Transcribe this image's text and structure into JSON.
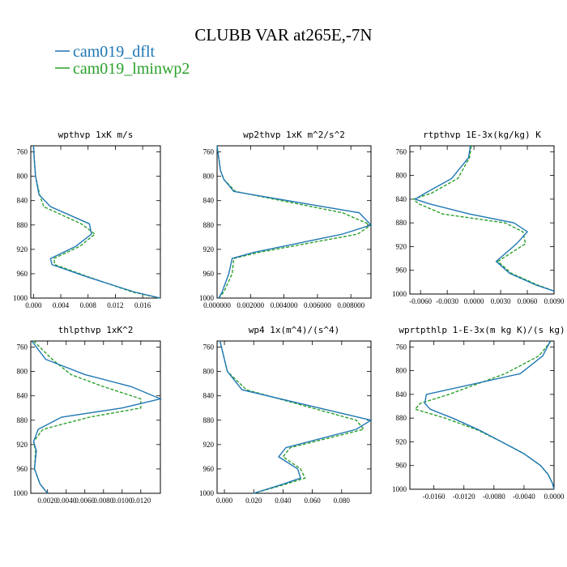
{
  "figure": {
    "title": "CLUBB VAR at265E,-7N",
    "legend": [
      {
        "label": "cam019_dflt",
        "color": "#1f77b4",
        "dash": false
      },
      {
        "label": "cam019_lminwp2",
        "color": "#2ca02c",
        "dash": true
      }
    ]
  },
  "chart_data": [
    {
      "type": "line",
      "title": "wpthvp  1xK m/s",
      "xlim": [
        -0.0004,
        0.0186
      ],
      "ylim": [
        1000,
        750
      ],
      "yticks": [
        760,
        800,
        840,
        880,
        920,
        960,
        1000
      ],
      "xticks": [
        0.0,
        0.004,
        0.008,
        0.012,
        0.016
      ],
      "xticklabels": [
        "0.000",
        "0.004",
        "0.008",
        "0.012",
        "0.016"
      ],
      "y": [
        750,
        770,
        800,
        830,
        850,
        878,
        895,
        915,
        935,
        945,
        965,
        990,
        1000
      ],
      "series": [
        {
          "name": "cam019_dflt",
          "values": [
            0.0,
            0.0001,
            0.0003,
            0.0008,
            0.0025,
            0.0082,
            0.0085,
            0.0062,
            0.0025,
            0.0027,
            0.0078,
            0.0148,
            0.0186
          ]
        },
        {
          "name": "cam019_lminwp2",
          "values": [
            0.0,
            0.0001,
            0.0003,
            0.0009,
            0.0015,
            0.007,
            0.009,
            0.0068,
            0.003,
            0.0031,
            0.008,
            0.0145,
            0.0185
          ]
        }
      ]
    },
    {
      "type": "line",
      "title": "wp2thvp  1xK m^2/s^2",
      "xlim": [
        0.0,
        0.0092
      ],
      "ylim": [
        1000,
        750
      ],
      "yticks": [
        760,
        800,
        840,
        880,
        920,
        960,
        1000
      ],
      "xticks": [
        0.0,
        0.002,
        0.004,
        0.006,
        0.008
      ],
      "xticklabels": [
        "0.000000",
        "0.002000",
        "0.004000",
        "0.006000",
        "0.008000"
      ],
      "y": [
        750,
        770,
        790,
        805,
        825,
        860,
        880,
        895,
        925,
        935,
        960,
        990,
        1000
      ],
      "series": [
        {
          "name": "cam019_dflt",
          "values": [
            0.0,
            0.0001,
            0.0002,
            0.0004,
            0.001,
            0.0085,
            0.0092,
            0.0075,
            0.0022,
            0.0009,
            0.0007,
            0.0003,
            0.0001
          ]
        },
        {
          "name": "cam019_lminwp2",
          "values": [
            0.0,
            0.0001,
            0.0002,
            0.0004,
            0.0011,
            0.0075,
            0.0092,
            0.0084,
            0.0025,
            0.001,
            0.0009,
            0.0004,
            0.0001
          ]
        }
      ]
    },
    {
      "type": "line",
      "title": "rtpthvp  1E-3x(kg/kg) K",
      "xlim": [
        -0.0072,
        0.009
      ],
      "ylim": [
        1000,
        750
      ],
      "yticks": [
        760,
        800,
        840,
        880,
        920,
        960,
        1000
      ],
      "xticks": [
        -0.006,
        -0.003,
        0.0,
        0.003,
        0.006,
        0.009
      ],
      "xticklabels": [
        "-0.0060",
        "-0.0030",
        "0.0000",
        "0.0030",
        "0.0060",
        "0.0090"
      ],
      "y": [
        750,
        770,
        805,
        830,
        840,
        848,
        865,
        880,
        895,
        915,
        945,
        965,
        985,
        995
      ],
      "series": [
        {
          "name": "cam019_dflt",
          "values": [
            -0.0004,
            -0.0006,
            -0.0025,
            -0.0055,
            -0.0066,
            -0.005,
            -0.0005,
            0.0045,
            0.006,
            0.0048,
            0.0025,
            0.004,
            0.007,
            0.009
          ]
        },
        {
          "name": "cam019_lminwp2",
          "values": [
            -0.0003,
            -0.0005,
            -0.0018,
            -0.0048,
            -0.0068,
            -0.0062,
            -0.0035,
            0.0035,
            0.0055,
            0.0058,
            0.0027,
            0.0042,
            0.0072,
            0.009
          ]
        }
      ]
    },
    {
      "type": "line",
      "title": "thlpthvp  1xK^2",
      "xlim": [
        0.0002,
        0.0141
      ],
      "ylim": [
        1000,
        750
      ],
      "yticks": [
        760,
        800,
        840,
        880,
        920,
        960,
        1000
      ],
      "xticks": [
        0.002,
        0.004,
        0.006,
        0.008,
        0.01,
        0.012
      ],
      "xticklabels": [
        "0.0020",
        "0.0040",
        "0.0060",
        "0.0080",
        "0.0100",
        "0.0120"
      ],
      "y": [
        750,
        780,
        805,
        825,
        845,
        860,
        875,
        895,
        915,
        930,
        960,
        985,
        1000
      ],
      "series": [
        {
          "name": "cam019_dflt",
          "values": [
            0.0003,
            0.0018,
            0.006,
            0.011,
            0.0141,
            0.01,
            0.0035,
            0.001,
            0.0005,
            0.0008,
            0.0006,
            0.0012,
            0.002
          ]
        },
        {
          "name": "cam019_lminwp2",
          "values": [
            0.0005,
            0.0025,
            0.0045,
            0.008,
            0.012,
            0.012,
            0.0065,
            0.0015,
            0.0005,
            0.0007,
            0.0006,
            0.0012,
            0.002
          ]
        }
      ]
    },
    {
      "type": "line",
      "title": "wp4  1x(m^4)/(s^4)",
      "xlim": [
        -0.005,
        0.1
      ],
      "ylim": [
        1000,
        750
      ],
      "yticks": [
        760,
        800,
        840,
        880,
        920,
        960,
        1000
      ],
      "xticks": [
        0.0,
        0.02,
        0.04,
        0.06,
        0.08
      ],
      "xticklabels": [
        "0.000",
        "0.020",
        "0.040",
        "0.060",
        "0.080"
      ],
      "y": [
        750,
        770,
        800,
        830,
        880,
        895,
        925,
        940,
        960,
        975,
        985,
        1000
      ],
      "series": [
        {
          "name": "cam019_dflt",
          "values": [
            -0.003,
            -0.001,
            0.002,
            0.012,
            0.1,
            0.09,
            0.042,
            0.037,
            0.05,
            0.052,
            0.04,
            0.02
          ]
        },
        {
          "name": "cam019_lminwp2",
          "values": [
            -0.003,
            -0.001,
            0.002,
            0.015,
            0.09,
            0.095,
            0.045,
            0.04,
            0.052,
            0.055,
            0.042,
            0.02
          ]
        }
      ]
    },
    {
      "type": "line",
      "title": "wprtpthlp  1-E-3x(m kg K)/(s kg)",
      "xlim": [
        -0.0192,
        0.0
      ],
      "ylim": [
        1000,
        750
      ],
      "yticks": [
        760,
        800,
        840,
        880,
        920,
        960,
        1000
      ],
      "xticks": [
        -0.016,
        -0.012,
        -0.008,
        -0.004,
        0.0
      ],
      "xticklabels": [
        "-0.0160",
        "-0.0120",
        "-0.0080",
        "-0.0040",
        "0.0000"
      ],
      "y": [
        750,
        775,
        805,
        840,
        855,
        865,
        880,
        900,
        920,
        940,
        960,
        975,
        990,
        1000
      ],
      "series": [
        {
          "name": "cam019_dflt",
          "values": [
            -0.0005,
            -0.0015,
            -0.0045,
            -0.017,
            -0.0172,
            -0.0165,
            -0.0135,
            -0.01,
            -0.007,
            -0.004,
            -0.0018,
            -0.0008,
            -0.0002,
            0.0
          ]
        },
        {
          "name": "cam019_lminwp2",
          "values": [
            -0.0004,
            -0.002,
            -0.0065,
            -0.014,
            -0.0178,
            -0.0185,
            -0.0145,
            -0.0102,
            -0.007,
            -0.004,
            -0.0018,
            -0.0008,
            -0.0002,
            0.0
          ]
        }
      ]
    }
  ]
}
